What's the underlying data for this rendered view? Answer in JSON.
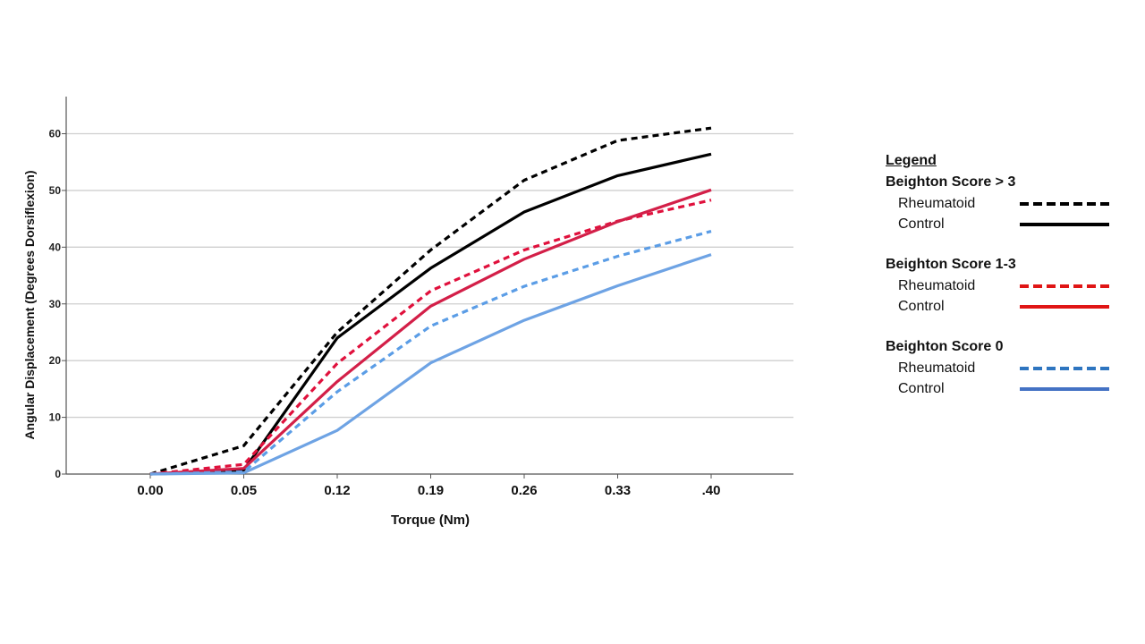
{
  "chart_data": {
    "type": "line",
    "title": "",
    "xlabel": "Torque (Nm)",
    "ylabel": "Angular Displacement  (Degrees Dorsiflexion)",
    "categories": [
      "0.00",
      "0.05",
      "0.12",
      "0.19",
      "0.26",
      "0.33",
      ".40"
    ],
    "ylim": [
      0,
      65
    ],
    "yticks": [
      "0",
      "10",
      "20",
      "30",
      "40",
      "50",
      "60"
    ],
    "grid": "horizontal",
    "legend_position": "right",
    "series": [
      {
        "group": "Beighton Score > 3",
        "name": "Rheumatoid",
        "color": "#000000",
        "style": "dashed",
        "values": [
          0,
          5.0,
          25.0,
          39.5,
          51.8,
          58.8,
          61.0
        ]
      },
      {
        "group": "Beighton Score > 3",
        "name": "Control",
        "color": "#000000",
        "style": "solid",
        "values": [
          0,
          0.7,
          24.0,
          36.3,
          46.2,
          52.6,
          56.4
        ]
      },
      {
        "group": "Beighton Score 1-3",
        "name": "Rheumatoid",
        "color": "#e0103c",
        "style": "dashed",
        "values": [
          0,
          1.7,
          19.5,
          32.3,
          39.5,
          44.6,
          48.3
        ]
      },
      {
        "group": "Beighton Score 1-3",
        "name": "Control",
        "color": "#d31f48",
        "style": "solid",
        "values": [
          0,
          1.0,
          16.3,
          29.6,
          37.9,
          44.5,
          50.1
        ]
      },
      {
        "group": "Beighton Score 0",
        "name": "Rheumatoid",
        "color": "#5b9de6",
        "style": "dashed",
        "values": [
          0,
          0.4,
          14.5,
          26.1,
          33.1,
          38.4,
          42.8
        ]
      },
      {
        "group": "Beighton Score 0",
        "name": "Control",
        "color": "#6ea3e4",
        "style": "solid",
        "values": [
          0,
          0.2,
          7.7,
          19.6,
          27.1,
          33.2,
          38.7
        ]
      }
    ]
  },
  "legend": {
    "title": "Legend",
    "groups": [
      {
        "title": "Beighton Score > 3",
        "entries": [
          {
            "label": "Rheumatoid",
            "color": "#000000",
            "style": "dashed"
          },
          {
            "label": "Control",
            "color": "#000000",
            "style": "solid"
          }
        ]
      },
      {
        "title": "Beighton Score 1-3",
        "entries": [
          {
            "label": "Rheumatoid",
            "color": "#e01515",
            "style": "dashed"
          },
          {
            "label": "Control",
            "color": "#e01515",
            "style": "solid"
          }
        ]
      },
      {
        "title": "Beighton Score 0",
        "entries": [
          {
            "label": "Rheumatoid",
            "color": "#2e75c0",
            "style": "dashed"
          },
          {
            "label": "Control",
            "color": "#4472c4",
            "style": "solid"
          }
        ]
      }
    ]
  }
}
